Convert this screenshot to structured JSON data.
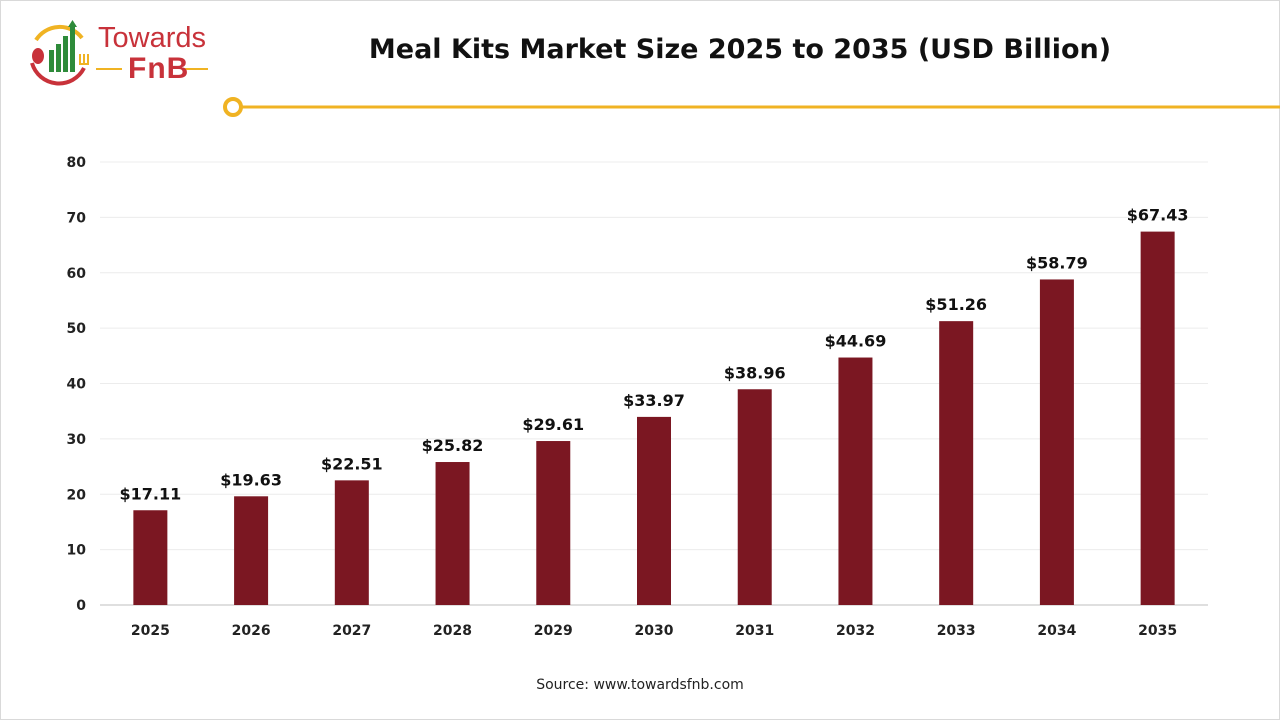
{
  "brand": {
    "line1": "Towards",
    "line2": "FnB"
  },
  "chart_data": {
    "type": "bar",
    "title": "Meal Kits Market Size 2025 to 2035 (USD Billion)",
    "categories": [
      "2025",
      "2026",
      "2027",
      "2028",
      "2029",
      "2030",
      "2031",
      "2032",
      "2033",
      "2034",
      "2035"
    ],
    "values": [
      17.11,
      19.63,
      22.51,
      25.82,
      29.61,
      33.97,
      38.96,
      44.69,
      51.26,
      58.79,
      67.43
    ],
    "data_labels": [
      "$17.11",
      "$19.63",
      "$22.51",
      "$25.82",
      "$29.61",
      "$33.97",
      "$38.96",
      "$44.69",
      "$51.26",
      "$58.79",
      "$67.43"
    ],
    "xlabel": "",
    "ylabel": "",
    "ylim": [
      0,
      80
    ],
    "yticks": [
      0,
      10,
      20,
      30,
      40,
      50,
      60,
      70,
      80
    ],
    "grid": true,
    "bar_color": "#7b1722",
    "accent_color": "#f0b323"
  },
  "source": "Source: www.towardsfnb.com"
}
